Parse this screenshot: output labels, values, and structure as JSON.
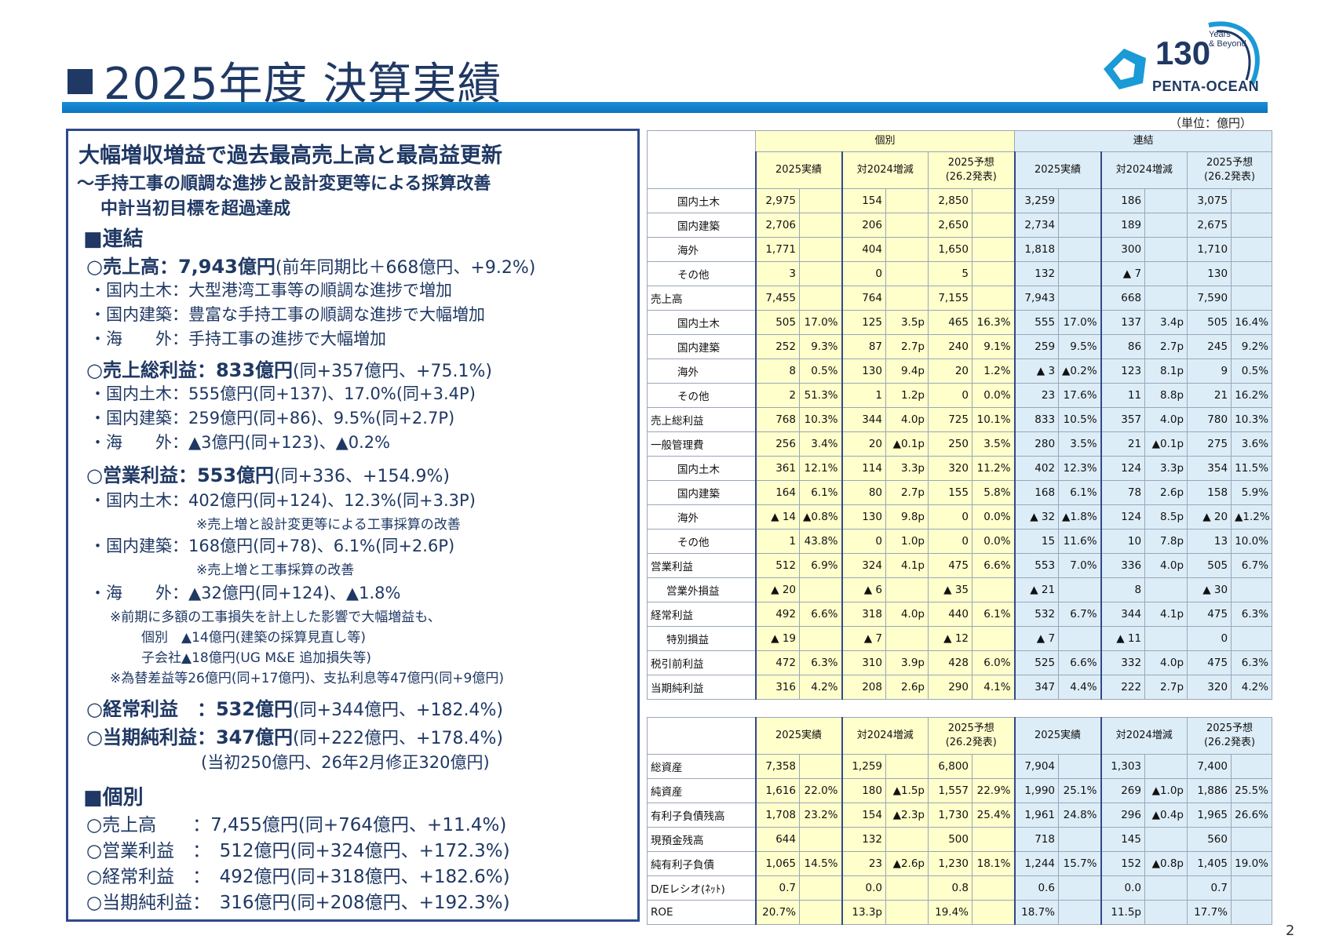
{
  "header": {
    "title": "2025年度 決算実績",
    "unit": "（単位：億円）",
    "page": "2"
  },
  "logo": {
    "number": "130",
    "years": [
      "Years",
      "& Beyond"
    ],
    "name": "PENTA-OCEAN",
    "icon": "pentagon-star-icon"
  },
  "summary": {
    "headline": "大幅増収増益で過去最高売上高と最高益更新",
    "sub1": "～手持工事の順調な進捗と設計変更等による採算改善",
    "sub2": "中計当初目標を超過達成",
    "rengo": "■連結",
    "sales_h": "○売上高：7,943億円",
    "sales_d": "(前年同期比＋668億円、+9.2%)",
    "sales_1": "・国内土木：大型港湾工事等の順調な進捗で増加",
    "sales_2": "・国内建築：豊富な手持工事の順調な進捗で大幅増加",
    "sales_3": "・海　　外：手持工事の進捗で大幅増加",
    "gp_h": "○売上総利益：833億円",
    "gp_d": "(同+357億円、+75.1%)",
    "gp_1": "・国内土木：555億円(同+137)、17.0%(同+3.4P)",
    "gp_2": "・国内建築：259億円(同+86)、9.5%(同+2.7P)",
    "gp_3": "・海　　外：▲3億円(同+123)、▲0.2%",
    "op_h": "○営業利益：553億円",
    "op_d": "(同+336、+154.9%)",
    "op_1": "・国内土木：402億円(同+124)、12.3%(同+3.3P)",
    "op_1n": "※売上増と設計変更等による工事採算の改善",
    "op_2": "・国内建築：168億円(同+78)、6.1%(同+2.6P)",
    "op_2n": "※売上増と工事採算の改善",
    "op_3": "・海　　外：▲32億円(同+124)、▲1.8%",
    "op_3n1": "※前期に多額の工事損失を計上した影響で大幅増益も、",
    "op_3n2": "個別　▲14億円(建築の採算見直し等)",
    "op_3n3": "子会社▲18億円(UG M&E 追加損失等)",
    "op_3n4": "※為替差益等26億円(同+17億円)、支払利息等47億円(同+9億円)",
    "ord_h": "○経常利益　：532億円",
    "ord_d": "(同+344億円、+182.4%)",
    "net_h": "○当期純利益：347億円",
    "net_d": "(同+222億円、+178.4%)",
    "net_n": "(当初250億円、26年2月修正320億円)",
    "kobetsu": "■個別",
    "k1": "○売上高　　：7,455億円(同+764億円、+11.4%)",
    "k2": "○営業利益　：　512億円(同+324億円、+172.3%)",
    "k3": "○経常利益　：　492億円(同+318億円、+182.6%)",
    "k4": "○当期純利益：　316億円(同+208億円、+192.3%)"
  },
  "pl_table": {
    "group_headers": [
      "個別",
      "連結"
    ],
    "col_headers": [
      "2025実績",
      "対2024増減",
      "2025予想\n(26.2発表)",
      "2025実績",
      "対2024増減",
      "2025予想\n(26.2発表)"
    ],
    "rows": [
      {
        "label": "国内土木",
        "indent": 1,
        "cells": [
          "2,975",
          "",
          "154",
          "",
          "2,850",
          "",
          "3,259",
          "",
          "186",
          "",
          "3,075",
          ""
        ]
      },
      {
        "label": "国内建築",
        "indent": 1,
        "cells": [
          "2,706",
          "",
          "206",
          "",
          "2,650",
          "",
          "2,734",
          "",
          "189",
          "",
          "2,675",
          ""
        ]
      },
      {
        "label": "海外",
        "indent": 1,
        "cells": [
          "1,771",
          "",
          "404",
          "",
          "1,650",
          "",
          "1,818",
          "",
          "300",
          "",
          "1,710",
          ""
        ]
      },
      {
        "label": "その他",
        "indent": 1,
        "cells": [
          "3",
          "",
          "0",
          "",
          "5",
          "",
          "132",
          "",
          "▲ 7",
          "",
          "130",
          ""
        ]
      },
      {
        "label": "売上高",
        "indent": 0,
        "sep": true,
        "cells": [
          "7,455",
          "",
          "764",
          "",
          "7,155",
          "",
          "7,943",
          "",
          "668",
          "",
          "7,590",
          ""
        ]
      },
      {
        "label": "国内土木",
        "indent": 1,
        "sep": true,
        "cells": [
          "505",
          "17.0%",
          "125",
          "3.5p",
          "465",
          "16.3%",
          "555",
          "17.0%",
          "137",
          "3.4p",
          "505",
          "16.4%"
        ]
      },
      {
        "label": "国内建築",
        "indent": 1,
        "cells": [
          "252",
          "9.3%",
          "87",
          "2.7p",
          "240",
          "9.1%",
          "259",
          "9.5%",
          "86",
          "2.7p",
          "245",
          "9.2%"
        ]
      },
      {
        "label": "海外",
        "indent": 1,
        "cells": [
          "8",
          "0.5%",
          "130",
          "9.4p",
          "20",
          "1.2%",
          "▲ 3",
          "▲0.2%",
          "123",
          "8.1p",
          "9",
          "0.5%"
        ]
      },
      {
        "label": "その他",
        "indent": 1,
        "cells": [
          "2",
          "51.3%",
          "1",
          "1.2p",
          "0",
          "0.0%",
          "23",
          "17.6%",
          "11",
          "8.8p",
          "21",
          "16.2%"
        ]
      },
      {
        "label": "売上総利益",
        "indent": 0,
        "sep": true,
        "cells": [
          "768",
          "10.3%",
          "344",
          "4.0p",
          "725",
          "10.1%",
          "833",
          "10.5%",
          "357",
          "4.0p",
          "780",
          "10.3%"
        ]
      },
      {
        "label": "一般管理費",
        "indent": 0,
        "sep": true,
        "cells": [
          "256",
          "3.4%",
          "20",
          "▲0.1p",
          "250",
          "3.5%",
          "280",
          "3.5%",
          "21",
          "▲0.1p",
          "275",
          "3.6%"
        ]
      },
      {
        "label": "国内土木",
        "indent": 1,
        "sep": true,
        "cells": [
          "361",
          "12.1%",
          "114",
          "3.3p",
          "320",
          "11.2%",
          "402",
          "12.3%",
          "124",
          "3.3p",
          "354",
          "11.5%"
        ]
      },
      {
        "label": "国内建築",
        "indent": 1,
        "cells": [
          "164",
          "6.1%",
          "80",
          "2.7p",
          "155",
          "5.8%",
          "168",
          "6.1%",
          "78",
          "2.6p",
          "158",
          "5.9%"
        ]
      },
      {
        "label": "海外",
        "indent": 1,
        "cells": [
          "▲ 14",
          "▲0.8%",
          "130",
          "9.8p",
          "0",
          "0.0%",
          "▲ 32",
          "▲1.8%",
          "124",
          "8.5p",
          "▲ 20",
          "▲1.2%"
        ]
      },
      {
        "label": "その他",
        "indent": 1,
        "cells": [
          "1",
          "43.8%",
          "0",
          "1.0p",
          "0",
          "0.0%",
          "15",
          "11.6%",
          "10",
          "7.8p",
          "13",
          "10.0%"
        ]
      },
      {
        "label": "営業利益",
        "indent": 0,
        "sep": true,
        "cells": [
          "512",
          "6.9%",
          "324",
          "4.1p",
          "475",
          "6.6%",
          "553",
          "7.0%",
          "336",
          "4.0p",
          "505",
          "6.7%"
        ]
      },
      {
        "label": "営業外損益",
        "indent": 2,
        "sep": true,
        "cells": [
          "▲ 20",
          "",
          "▲ 6",
          "",
          "▲ 35",
          "",
          "▲ 21",
          "",
          "8",
          "",
          "▲ 30",
          ""
        ]
      },
      {
        "label": "経常利益",
        "indent": 0,
        "sep": true,
        "cells": [
          "492",
          "6.6%",
          "318",
          "4.0p",
          "440",
          "6.1%",
          "532",
          "6.7%",
          "344",
          "4.1p",
          "475",
          "6.3%"
        ]
      },
      {
        "label": "特別損益",
        "indent": 2,
        "sep": true,
        "cells": [
          "▲ 19",
          "",
          "▲ 7",
          "",
          "▲ 12",
          "",
          "▲ 7",
          "",
          "▲ 11",
          "",
          "0",
          ""
        ]
      },
      {
        "label": "税引前利益",
        "indent": 0,
        "sep": true,
        "cells": [
          "472",
          "6.3%",
          "310",
          "3.9p",
          "428",
          "6.0%",
          "525",
          "6.6%",
          "332",
          "4.0p",
          "475",
          "6.3%"
        ]
      },
      {
        "label": "当期純利益",
        "indent": 0,
        "sep": true,
        "cells": [
          "316",
          "4.2%",
          "208",
          "2.6p",
          "290",
          "4.1%",
          "347",
          "4.4%",
          "222",
          "2.7p",
          "320",
          "4.2%"
        ]
      }
    ]
  },
  "bs_table": {
    "col_headers": [
      "2025実績",
      "対2024増減",
      "2025予想\n(26.2発表)",
      "2025実績",
      "対2024増減",
      "2025予想\n(26.2発表)"
    ],
    "rows": [
      {
        "label": "総資産",
        "cells": [
          "7,358",
          "",
          "1,259",
          "",
          "6,800",
          "",
          "7,904",
          "",
          "1,303",
          "",
          "7,400",
          ""
        ]
      },
      {
        "label": "純資産",
        "cells": [
          "1,616",
          "22.0%",
          "180",
          "▲1.5p",
          "1,557",
          "22.9%",
          "1,990",
          "25.1%",
          "269",
          "▲1.0p",
          "1,886",
          "25.5%"
        ]
      },
      {
        "label": "有利子負債残高",
        "cells": [
          "1,708",
          "23.2%",
          "154",
          "▲2.3p",
          "1,730",
          "25.4%",
          "1,961",
          "24.8%",
          "296",
          "▲0.4p",
          "1,965",
          "26.6%"
        ]
      },
      {
        "label": "現預金残高",
        "cells": [
          "644",
          "",
          "132",
          "",
          "500",
          "",
          "718",
          "",
          "145",
          "",
          "560",
          ""
        ]
      },
      {
        "label": "純有利子負債",
        "cells": [
          "1,065",
          "14.5%",
          "23",
          "▲2.6p",
          "1,230",
          "18.1%",
          "1,244",
          "15.7%",
          "152",
          "▲0.8p",
          "1,405",
          "19.0%"
        ]
      },
      {
        "label": "D/Eレシオ(ﾈｯﾄ)",
        "cells": [
          "0.7",
          "",
          "0.0",
          "",
          "0.8",
          "",
          "0.6",
          "",
          "0.0",
          "",
          "0.7",
          ""
        ]
      },
      {
        "label": "ROE",
        "cells": [
          "20.7%",
          "",
          "13.3p",
          "",
          "19.4%",
          "",
          "18.7%",
          "",
          "11.5p",
          "",
          "17.7%",
          ""
        ]
      }
    ]
  }
}
